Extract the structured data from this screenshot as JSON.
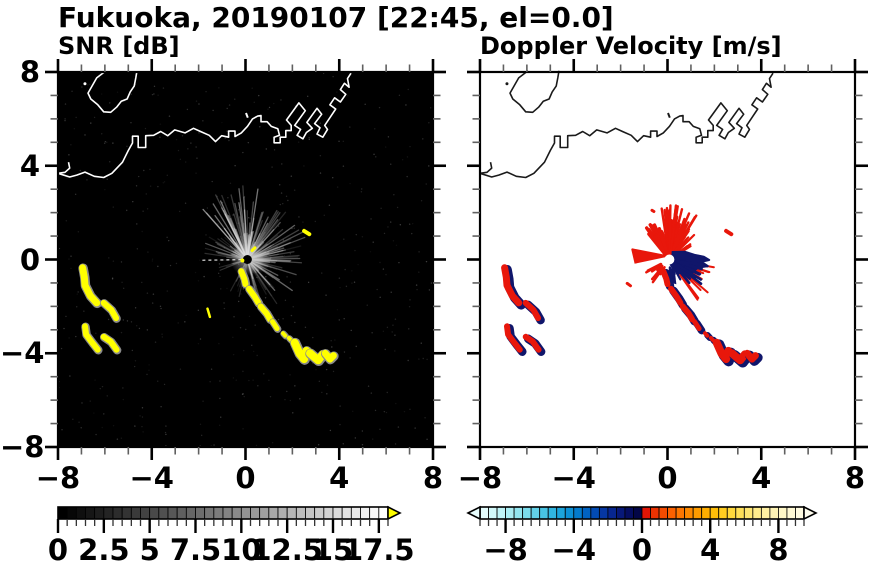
{
  "title": "Fukuoka, 20190107 [22:45, el=0.0]",
  "panels": [
    {
      "label": "SNR [dB]",
      "background": "#000000",
      "coast_color": "#ffffff",
      "echo_color": "#ffff00",
      "echo_fringe": "#8a8a8a",
      "center_dot": "#000000"
    },
    {
      "label": "Doppler Velocity [m/s]",
      "background": "#ffffff",
      "coast_color": "#1a1a1a",
      "echo_color": "#e8170b",
      "echo_fringe": "#10166b",
      "center_dot": "#ffffff"
    }
  ],
  "axes": {
    "xlim": [
      -8,
      8
    ],
    "ylim": [
      -8,
      8
    ],
    "xticks": {
      "values": [
        -8,
        -4,
        0,
        4,
        8
      ],
      "labels": [
        "−8",
        "−4",
        "0",
        "4",
        "8"
      ]
    },
    "yticks": {
      "values": [
        8,
        4,
        0,
        -4,
        -8
      ],
      "labels": [
        "8",
        "4",
        "0",
        "−4",
        "−8"
      ]
    },
    "minor_step": 1,
    "major_step": 4
  },
  "colorbars": [
    {
      "name": "snr",
      "vmin": 0,
      "vmax": 18,
      "segment": 0.5,
      "colormap": "linear-gray",
      "over_arrow_color": "#ffff00",
      "tick_values": [
        0,
        2.5,
        5,
        7.5,
        10,
        12.5,
        15,
        17.5
      ],
      "tick_labels": [
        "0",
        "2.5",
        "5",
        "7.5",
        "10",
        "12.5",
        "15",
        "17.5"
      ]
    },
    {
      "name": "velocity",
      "vmin": -9.5,
      "vmax": 9.5,
      "segment": 0.5,
      "under_arrow_color": "#e8fdfd",
      "over_arrow_color": "#fffdee",
      "colors": [
        "#e3fcfc",
        "#d2f8f9",
        "#bff3f6",
        "#aaedf3",
        "#93e5ef",
        "#7bdcec",
        "#62d1e8",
        "#48c4e4",
        "#30b5e0",
        "#1ca4db",
        "#0c90d5",
        "#047bcd",
        "#0163c2",
        "#024bb4",
        "#0537a3",
        "#07268f",
        "#071878",
        "#050d60",
        "#030647",
        "#e11505",
        "#ec3202",
        "#f54b00",
        "#fb6100",
        "#ff7600",
        "#ff8900",
        "#ff9c00",
        "#ffae00",
        "#ffbe08",
        "#ffcc20",
        "#ffd83c",
        "#ffe058",
        "#ffe773",
        "#ffec8c",
        "#fff0a2",
        "#fff4b5",
        "#fff7c6",
        "#fff9d4",
        "#fffbe0"
      ],
      "tick_values": [
        -8,
        -4,
        0,
        4,
        8
      ],
      "tick_labels": [
        "−8",
        "−4",
        "0",
        "4",
        "8"
      ]
    }
  ],
  "geometry": {
    "radar_center": [
      0.08,
      0.0
    ],
    "coastline": {
      "mainland": [
        [
          -7.55,
          4.15
        ],
        [
          -7.5,
          3.9
        ],
        [
          -7.7,
          3.72
        ],
        [
          -8.0,
          3.68
        ],
        [
          -7.5,
          3.52
        ],
        [
          -7.2,
          3.6
        ],
        [
          -6.85,
          3.73
        ],
        [
          -6.45,
          3.55
        ],
        [
          -6.05,
          3.5
        ],
        [
          -5.7,
          3.68
        ],
        [
          -5.25,
          4.15
        ],
        [
          -5.0,
          4.65
        ],
        [
          -4.82,
          4.97
        ],
        [
          -4.82,
          5.26
        ],
        [
          -4.58,
          5.26
        ],
        [
          -4.58,
          4.78
        ],
        [
          -4.26,
          4.78
        ],
        [
          -4.26,
          5.28
        ],
        [
          -3.92,
          5.3
        ],
        [
          -3.62,
          5.46
        ],
        [
          -3.32,
          5.28
        ],
        [
          -3.02,
          5.53
        ],
        [
          -2.58,
          5.4
        ],
        [
          -2.22,
          5.6
        ],
        [
          -1.92,
          5.46
        ],
        [
          -1.55,
          5.3
        ],
        [
          -1.28,
          5.03
        ],
        [
          -1.02,
          5.28
        ],
        [
          -0.72,
          5.22
        ],
        [
          -0.72,
          5.48
        ],
        [
          -0.45,
          5.48
        ],
        [
          -0.45,
          5.25
        ],
        [
          -0.18,
          5.4
        ],
        [
          0.08,
          5.68
        ],
        [
          0.3,
          6.0
        ],
        [
          0.52,
          6.12
        ],
        [
          0.66,
          6.14
        ],
        [
          0.66,
          5.88
        ],
        [
          0.92,
          5.88
        ],
        [
          1.1,
          5.68
        ],
        [
          1.38,
          5.58
        ],
        [
          1.45,
          5.3
        ],
        [
          1.22,
          5.22
        ],
        [
          1.22,
          4.98
        ],
        [
          1.48,
          4.98
        ],
        [
          1.48,
          5.22
        ],
        [
          1.72,
          5.22
        ],
        [
          1.72,
          5.5
        ],
        [
          1.95,
          5.5
        ],
        [
          1.95,
          5.72
        ],
        [
          1.75,
          5.95
        ],
        [
          2.28,
          6.68
        ],
        [
          2.55,
          6.35
        ],
        [
          2.1,
          5.72
        ],
        [
          2.35,
          5.55
        ],
        [
          2.2,
          5.3
        ],
        [
          2.45,
          5.15
        ],
        [
          2.6,
          5.42
        ],
        [
          2.85,
          5.6
        ],
        [
          2.62,
          5.85
        ],
        [
          3.05,
          6.45
        ],
        [
          3.25,
          6.2
        ],
        [
          2.95,
          5.8
        ],
        [
          3.18,
          5.62
        ],
        [
          3.05,
          5.35
        ],
        [
          3.3,
          5.22
        ],
        [
          3.5,
          5.55
        ],
        [
          3.38,
          5.72
        ],
        [
          3.6,
          6.05
        ],
        [
          3.85,
          6.42
        ],
        [
          3.6,
          6.6
        ],
        [
          3.8,
          6.9
        ],
        [
          4.05,
          6.72
        ],
        [
          4.28,
          7.05
        ],
        [
          4.05,
          7.25
        ],
        [
          4.22,
          7.52
        ],
        [
          4.42,
          7.35
        ],
        [
          4.35,
          7.72
        ],
        [
          4.5,
          7.95
        ]
      ],
      "island": [
        [
          -5.95,
          8.05
        ],
        [
          -6.35,
          7.75
        ],
        [
          -6.55,
          7.4
        ],
        [
          -6.72,
          7.1
        ],
        [
          -6.6,
          6.85
        ],
        [
          -6.3,
          6.6
        ],
        [
          -6.05,
          6.3
        ],
        [
          -5.75,
          6.28
        ],
        [
          -5.5,
          6.5
        ],
        [
          -5.3,
          6.75
        ],
        [
          -5.05,
          6.85
        ],
        [
          -4.92,
          7.15
        ],
        [
          -4.75,
          7.4
        ],
        [
          -4.68,
          7.75
        ],
        [
          -4.63,
          8.05
        ]
      ],
      "islet_dash": [
        [
          0.02,
          6.25
        ],
        [
          0.1,
          6.05
        ]
      ],
      "island_dot": [
        -6.85,
        7.5
      ]
    },
    "echoes": {
      "left_group": [
        {
          "pts": [
            [
              -6.95,
              -0.35
            ],
            [
              -6.88,
              -0.75
            ],
            [
              -6.85,
              -1.1
            ],
            [
              -6.62,
              -1.55
            ],
            [
              -6.35,
              -1.85
            ]
          ],
          "w": 7
        },
        {
          "pts": [
            [
              -6.05,
              -1.85
            ],
            [
              -5.72,
              -2.15
            ],
            [
              -5.52,
              -2.5
            ]
          ],
          "w": 6
        },
        {
          "pts": [
            [
              -6.85,
              -2.85
            ],
            [
              -6.8,
              -3.2
            ],
            [
              -6.5,
              -3.6
            ],
            [
              -6.3,
              -3.85
            ]
          ],
          "w": 6
        },
        {
          "pts": [
            [
              -6.05,
              -3.3
            ],
            [
              -5.75,
              -3.5
            ],
            [
              -5.5,
              -3.85
            ]
          ],
          "w": 6
        }
      ],
      "chain": [
        {
          "pts": [
            [
              -0.18,
              -0.5
            ],
            [
              -0.05,
              -0.82
            ],
            [
              0.0,
              -1.05
            ]
          ],
          "w": 6
        },
        {
          "pts": [
            [
              0.15,
              -1.25
            ],
            [
              0.4,
              -1.6
            ],
            [
              0.55,
              -1.85
            ]
          ],
          "w": 6
        },
        {
          "pts": [
            [
              0.65,
              -2.0
            ],
            [
              0.9,
              -2.3
            ],
            [
              1.05,
              -2.55
            ]
          ],
          "w": 6
        },
        {
          "pts": [
            [
              1.15,
              -2.65
            ],
            [
              1.35,
              -2.95
            ]
          ],
          "w": 5
        },
        {
          "pts": [
            [
              1.6,
              -3.15
            ],
            [
              1.7,
              -3.25
            ]
          ],
          "w": 4
        },
        {
          "pts": [
            [
              1.85,
              -3.35
            ],
            [
              1.95,
              -3.45
            ]
          ],
          "w": 4
        },
        {
          "pts": [
            [
              2.1,
              -3.55
            ],
            [
              2.3,
              -4.0
            ],
            [
              2.5,
              -4.25
            ],
            [
              2.6,
              -3.9
            ]
          ],
          "w": 8
        },
        {
          "pts": [
            [
              2.75,
              -4.0
            ],
            [
              3.1,
              -4.3
            ],
            [
              3.3,
              -4.05
            ]
          ],
          "w": 8
        },
        {
          "pts": [
            [
              3.4,
              -4.0
            ],
            [
              3.6,
              -4.25
            ],
            [
              3.75,
              -4.1
            ]
          ],
          "w": 7
        }
      ]
    },
    "snr_spots": [
      {
        "pts": [
          [
            2.5,
            1.22
          ],
          [
            2.72,
            1.08
          ]
        ],
        "w": 4
      },
      {
        "pts": [
          [
            -1.62,
            -2.1
          ],
          [
            -1.52,
            -2.45
          ]
        ],
        "w": 2.5
      },
      {
        "pts": [
          [
            0.28,
            0.38
          ],
          [
            0.4,
            0.5
          ]
        ],
        "w": 3
      }
    ],
    "doppler_spots": [
      {
        "pts": [
          [
            2.5,
            1.22
          ],
          [
            2.72,
            1.08
          ]
        ],
        "w": 4,
        "color": "#e8170b"
      },
      {
        "pts": [
          [
            -0.66,
            2.1
          ],
          [
            -0.58,
            2.05
          ]
        ],
        "w": 3,
        "color": "#e8170b"
      },
      {
        "pts": [
          [
            -1.72,
            -1.02
          ],
          [
            -1.58,
            -1.12
          ]
        ],
        "w": 3,
        "color": "#e8170b"
      }
    ]
  },
  "snr_rays": {
    "sectors": [
      {
        "a0": 16,
        "a1": 75,
        "n": 42,
        "len0": 0.5,
        "len1": 2.5,
        "w": 1.3,
        "color": "#d0d0d0",
        "o0": 0.1,
        "o1": 0.5
      },
      {
        "a0": 75,
        "a1": 132,
        "n": 48,
        "len0": 0.6,
        "len1": 2.9,
        "w": 1.3,
        "color": "#dddddd",
        "o0": 0.12,
        "o1": 0.6
      },
      {
        "a0": 132,
        "a1": 176,
        "n": 22,
        "len0": 0.4,
        "len1": 1.7,
        "w": 1.2,
        "color": "#cccccc",
        "o0": 0.1,
        "o1": 0.45
      },
      {
        "a0": -78,
        "a1": 16,
        "n": 45,
        "len0": 0.4,
        "len1": 2.2,
        "w": 1.3,
        "color": "#cccccc",
        "o0": 0.1,
        "o1": 0.5
      },
      {
        "a0": 238,
        "a1": 264,
        "n": 9,
        "len0": 0.4,
        "len1": 1.5,
        "w": 1.2,
        "color": "#bbbbbb",
        "o0": 0.08,
        "o1": 0.35
      },
      {
        "a0": 176,
        "a1": 204,
        "n": 7,
        "len0": 0.3,
        "len1": 1.1,
        "w": 1.1,
        "color": "#bbbbbb",
        "o0": 0.08,
        "o1": 0.3
      }
    ],
    "dashed_ray": {
      "angle": 181,
      "len": 2.05,
      "color": "#eeeeee"
    },
    "noise_dots": 480
  },
  "doppler_rays": {
    "red_sectors": [
      {
        "a0": 58,
        "a1": 100,
        "n": 40,
        "len0": 0.6,
        "len1": 2.1,
        "w": 2.4
      },
      {
        "a0": 100,
        "a1": 131,
        "n": 28,
        "len0": 0.6,
        "len1": 1.5,
        "w": 3.4
      },
      {
        "a0": 28,
        "a1": 58,
        "n": 11,
        "len0": 0.35,
        "len1": 1.4,
        "w": 2.2
      },
      {
        "a0": -58,
        "a1": -6,
        "n": 26,
        "r0": 0.75,
        "len0": 0.2,
        "len1": 1.3,
        "w": 2.0
      },
      {
        "a0": 196,
        "a1": 242,
        "n": 8,
        "r0": 0.35,
        "len0": 0.25,
        "len1": 0.85,
        "w": 2.4
      }
    ],
    "navy_sectors": [
      {
        "a0": -50,
        "a1": 6,
        "n": 24,
        "r0": 0.22,
        "len0": 0.35,
        "len1": 1.35,
        "w": 2.6
      },
      {
        "a0": -92,
        "a1": -58,
        "n": 7,
        "r0": 0.3,
        "len0": 0.25,
        "len1": 0.8,
        "w": 2.2
      }
    ],
    "red_wedge": [
      [
        0.05,
        0.13
      ],
      [
        -1.5,
        0.43
      ],
      [
        -1.36,
        -0.17
      ]
    ],
    "navy_blob": [
      [
        0.18,
        0.32
      ],
      [
        0.75,
        0.33
      ],
      [
        1.15,
        0.2
      ],
      [
        1.55,
        0.12
      ],
      [
        1.78,
        -0.02
      ],
      [
        1.45,
        -0.1
      ],
      [
        1.72,
        -0.28
      ],
      [
        1.3,
        -0.35
      ],
      [
        1.05,
        -0.55
      ],
      [
        0.72,
        -0.48
      ],
      [
        0.45,
        -0.62
      ],
      [
        0.28,
        -0.42
      ],
      [
        0.12,
        -0.2
      ]
    ],
    "navy_blob2": [
      [
        -0.02,
        -0.55
      ],
      [
        0.28,
        -0.62
      ],
      [
        0.33,
        -1.0
      ],
      [
        0.05,
        -0.92
      ]
    ]
  },
  "chart_data": [
    {
      "type": "heatmap",
      "title": "SNR [dB]",
      "xlabel": "",
      "ylabel": "",
      "xlim": [
        -8,
        8
      ],
      "ylim": [
        -8,
        8
      ],
      "xticks": [
        -8,
        -4,
        0,
        4,
        8
      ],
      "yticks": [
        8,
        4,
        0,
        -4,
        -8
      ],
      "grid": false,
      "colorbar": {
        "position": "bottom",
        "range": [
          0,
          18
        ],
        "ticks": [
          0,
          2.5,
          5,
          7.5,
          10,
          12.5,
          15,
          17.5
        ],
        "colormap": "black-to-white grayscale",
        "over_color": "yellow"
      },
      "description": "Radar PPI image on black background; white coastline of Hakata Bay along the top; gray ground-clutter rays radiating from the radar at (0.1,0); bright yellow high-SNR echo patches: crescents near (-6.8,-1)/(-6.6,-3.5) and a chain from (0,-1) to (3.7,-4.2); small yellow dash near (2.6,1.1)."
    },
    {
      "type": "heatmap",
      "title": "Doppler Velocity [m/s]",
      "xlabel": "",
      "ylabel": "",
      "xlim": [
        -8,
        8
      ],
      "ylim": [
        -8,
        8
      ],
      "xticks": [
        -8,
        -4,
        0,
        4,
        8
      ],
      "yticks": [
        8,
        4,
        0,
        -4,
        -8
      ],
      "grid": false,
      "colorbar": {
        "position": "bottom",
        "range": [
          -9.5,
          9.5
        ],
        "ticks": [
          -8,
          -4,
          0,
          4,
          8
        ],
        "colormap": "pale-cyan to navy (negative), red to cream (positive)"
      },
      "description": "Same scene on white background with black coastline; red (positive velocity) rays fan upward/up-left of the radar, dense navy (negative velocity) cluster right of center; echo patches repeat as red shapes fringed with navy; white hole at the radar site (0.1,0)."
    }
  ]
}
